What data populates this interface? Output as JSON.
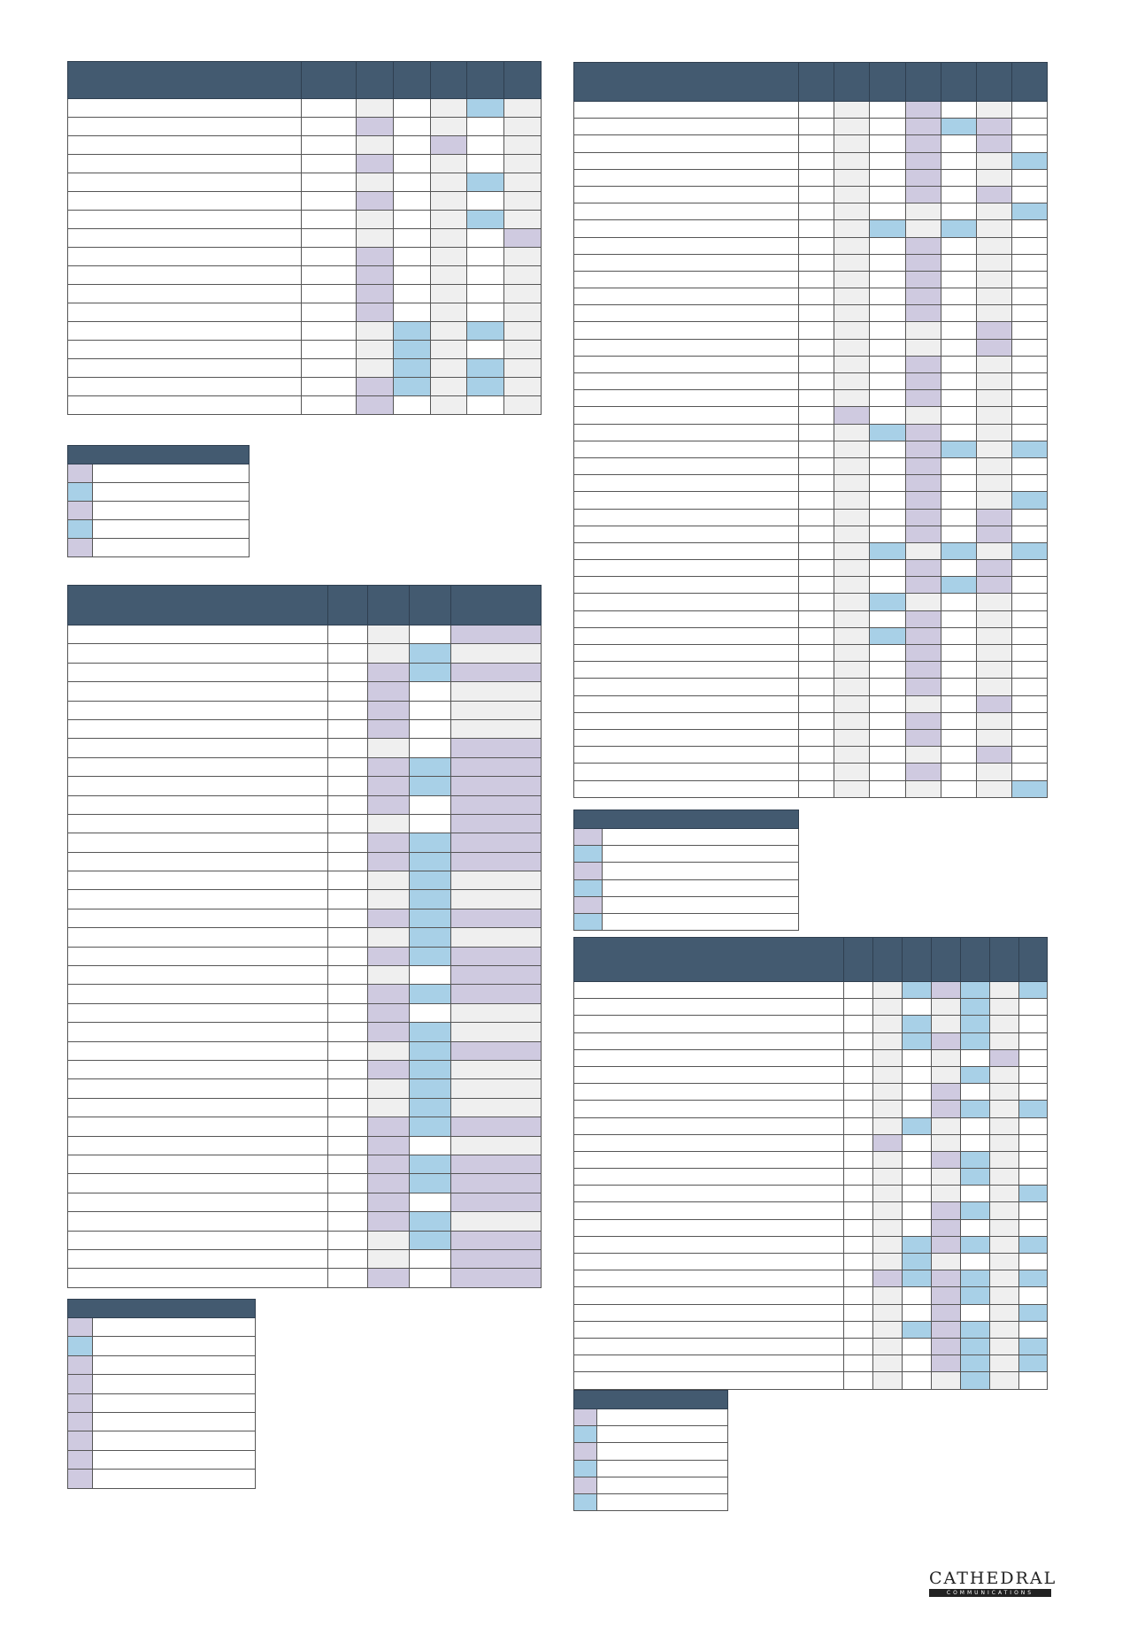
{
  "colors": {
    "header": "#435a70",
    "white": "#ffffff",
    "grey": "#efefef",
    "purple": "#cfcae0",
    "blue": "#a8d0e7"
  },
  "tables": [
    {
      "id": "t1",
      "rows": [
        "wwgwgbg",
        "wwpwgwg",
        "wwgwpwg",
        "wwpwgwg",
        "wwgwgbg",
        "wwpwgwg",
        "wwgwgbg",
        "wwgwgwp",
        "wwpwgwg",
        "wwpwgwg",
        "wwpwgwg",
        "wwpwgwg",
        "wwgbgbg",
        "wwgbgwg",
        "wwgbgbg",
        "wwpbgbg",
        "wwpwgwg"
      ]
    },
    {
      "id": "t2",
      "rows": [
        "wwgwpwgw",
        "wwgwpbpw",
        "wwgwpwpw",
        "wwgwpwgb",
        "wwgwpwgw",
        "wwgwpwpw",
        "wwgwgwgb",
        "wwgbgbgw",
        "wwgwpwgw",
        "wwgwpwgw",
        "wwgwpwgw",
        "wwgwpwgw",
        "wwgwpwgw",
        "wwgwgwpw",
        "wwgwgwpw",
        "wwgwpwgw",
        "wwgwpwgw",
        "wwgwpwgw",
        "wwpwgwgw",
        "wwgbpwgw",
        "wwgwpbgb",
        "wwgwpwgw",
        "wwgwpwgw",
        "wwgwpwgb",
        "wwgwpwpw",
        "wwgwpwpw",
        "wwgbgbgb",
        "wwgwpwpw",
        "wwgwpbpw",
        "wwgbgwgw",
        "wwgwpwgw",
        "wwgbpwgw",
        "wwgwpwgw",
        "wwgwpwgw",
        "wwgwpwgw",
        "wwgwgwpw",
        "wwgwpwgw",
        "wwgwpwgw",
        "wwgwgwpw",
        "wwgwpwgw",
        "wwgwgwgb"
      ]
    },
    {
      "id": "t3",
      "rows": [
        "wwgwp",
        "wwgbg",
        "wwpbp",
        "wwpwg",
        "wwpwg",
        "wwpwg",
        "wwgwp",
        "wwpbp",
        "wwpbp",
        "wwpwp",
        "wwgwp",
        "wwpbp",
        "wwpbp",
        "wwgbg",
        "wwgbg",
        "wwpbp",
        "wwgbg",
        "wwpbp",
        "wwgwp",
        "wwpbp",
        "wwpwg",
        "wwpbg",
        "wwgbp",
        "wwpbg",
        "wwgbg",
        "wwgbg",
        "wwpbp",
        "wwpwg",
        "wwpbp",
        "wwpbp",
        "wwpwp",
        "wwpbg",
        "wwgbp",
        "wwgwp",
        "wwpwp"
      ]
    },
    {
      "id": "t4",
      "rows": [
        "wwgbpbgb",
        "wwgwgbgw",
        "wwgbgbgw",
        "wwgbpbgw",
        "wwgwgwpw",
        "wwgwgbgw",
        "wwgwpwgw",
        "wwgwpbgb",
        "wwgbgwgw",
        "wwpwgwgw",
        "wwgwpbgw",
        "wwgwgbgw",
        "wwgwgwgb",
        "wwgwpbgw",
        "wwgwpwgw",
        "wwgbpbgb",
        "wwgbgwgw",
        "wwpbpbgb",
        "wwgwpbgw",
        "wwgwpwgb",
        "wwgbpbgw",
        "wwgwpbgb",
        "wwgwpbgb",
        "wwgwgbgw"
      ]
    }
  ],
  "legends": [
    {
      "id": "l1",
      "swatches": [
        "p",
        "b",
        "p",
        "b",
        "p"
      ]
    },
    {
      "id": "l2",
      "swatches": [
        "p",
        "b",
        "p",
        "b",
        "p",
        "b"
      ]
    },
    {
      "id": "l3",
      "swatches": [
        "p",
        "b",
        "p",
        "p",
        "p",
        "p",
        "p",
        "p",
        "p"
      ]
    },
    {
      "id": "l4",
      "swatches": [
        "p",
        "b",
        "p",
        "b",
        "p",
        "b"
      ]
    }
  ],
  "logo": {
    "word": "CATHEDRAL",
    "sub": "COMMUNICATIONS"
  }
}
